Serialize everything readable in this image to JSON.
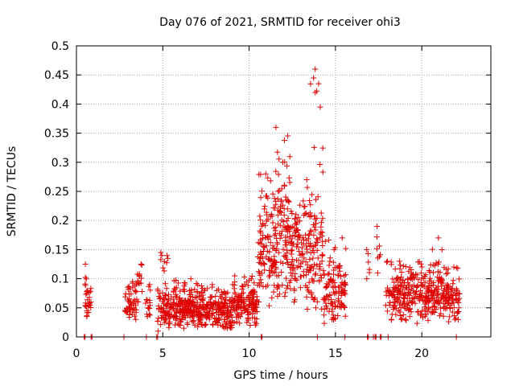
{
  "chart_data": {
    "type": "scatter",
    "title": "Day 076 of 2021, SRMTID for receiver ohi3",
    "xlabel": "GPS time / hours",
    "ylabel": "SRMTID / TECUs",
    "xlim": [
      0,
      24
    ],
    "ylim": [
      0,
      0.5
    ],
    "xticks": [
      0,
      5,
      10,
      15,
      20
    ],
    "xtick_labels": [
      "0",
      "5",
      "10",
      "15",
      "20"
    ],
    "yticks": [
      0,
      0.05,
      0.1,
      0.15,
      0.2,
      0.25,
      0.3,
      0.35,
      0.4,
      0.45,
      0.5
    ],
    "ytick_labels": [
      "0",
      "0.05",
      "0.1",
      "0.15",
      "0.2",
      "0.25",
      "0.3",
      "0.35",
      "0.4",
      "0.45",
      "0.5"
    ],
    "grid": true,
    "marker": "+",
    "series_color": "#e00000",
    "series": [
      {
        "name": "SRMTID",
        "segments": [
          {
            "x_start": 0.5,
            "x_end": 0.85,
            "y_low": 0.035,
            "y_high": 0.125,
            "y_center": 0.07,
            "count": 30
          },
          {
            "x_start": 2.8,
            "x_end": 3.5,
            "y_low": 0.03,
            "y_high": 0.095,
            "y_center": 0.055,
            "count": 55
          },
          {
            "x_start": 3.5,
            "x_end": 3.85,
            "y_low": 0.06,
            "y_high": 0.125,
            "y_center": 0.1,
            "count": 14
          },
          {
            "x_start": 4.0,
            "x_end": 4.3,
            "y_low": 0.035,
            "y_high": 0.09,
            "y_center": 0.06,
            "count": 16
          },
          {
            "x_start": 4.7,
            "x_end": 5.3,
            "y_low": 0.01,
            "y_high": 0.145,
            "y_center": 0.05,
            "count": 60
          },
          {
            "x_start": 5.3,
            "x_end": 7.0,
            "y_low": 0.02,
            "y_high": 0.1,
            "y_center": 0.05,
            "count": 190
          },
          {
            "x_start": 7.0,
            "x_end": 9.0,
            "y_low": 0.015,
            "y_high": 0.09,
            "y_center": 0.045,
            "count": 200
          },
          {
            "x_start": 9.0,
            "x_end": 10.5,
            "y_low": 0.02,
            "y_high": 0.105,
            "y_center": 0.055,
            "count": 150
          },
          {
            "x_start": 10.5,
            "x_end": 11.5,
            "y_low": 0.06,
            "y_high": 0.28,
            "y_center": 0.15,
            "count": 110
          },
          {
            "x_start": 11.5,
            "x_end": 12.4,
            "y_low": 0.07,
            "y_high": 0.36,
            "y_center": 0.18,
            "count": 110
          },
          {
            "x_start": 12.4,
            "x_end": 13.5,
            "y_low": 0.06,
            "y_high": 0.27,
            "y_center": 0.15,
            "count": 110
          },
          {
            "x_start": 13.5,
            "x_end": 14.3,
            "y_low": 0.05,
            "y_high": 0.46,
            "y_center": 0.14,
            "count": 90
          },
          {
            "x_start": 14.3,
            "x_end": 15.6,
            "y_low": 0.03,
            "y_high": 0.17,
            "y_center": 0.08,
            "count": 120
          },
          {
            "x_start": 16.8,
            "x_end": 17.1,
            "y_low": 0.1,
            "y_high": 0.15,
            "y_center": 0.125,
            "count": 6
          },
          {
            "x_start": 17.4,
            "x_end": 17.6,
            "y_low": 0.11,
            "y_high": 0.19,
            "y_center": 0.15,
            "count": 8
          },
          {
            "x_start": 17.9,
            "x_end": 18.5,
            "y_low": 0.03,
            "y_high": 0.13,
            "y_center": 0.07,
            "count": 45
          },
          {
            "x_start": 18.5,
            "x_end": 20.5,
            "y_low": 0.03,
            "y_high": 0.13,
            "y_center": 0.075,
            "count": 190
          },
          {
            "x_start": 20.5,
            "x_end": 21.2,
            "y_low": 0.04,
            "y_high": 0.17,
            "y_center": 0.085,
            "count": 70
          },
          {
            "x_start": 21.2,
            "x_end": 22.2,
            "y_low": 0.03,
            "y_high": 0.12,
            "y_center": 0.065,
            "count": 90
          }
        ],
        "zero_points_x": [
          0.45,
          0.5,
          0.85,
          0.9,
          2.75,
          4.05,
          4.65,
          4.7,
          10.7,
          10.75,
          13.95,
          15.55,
          16.85,
          16.9,
          17.2,
          17.3,
          17.35,
          17.6,
          17.65,
          18.05,
          22.0
        ]
      }
    ]
  }
}
